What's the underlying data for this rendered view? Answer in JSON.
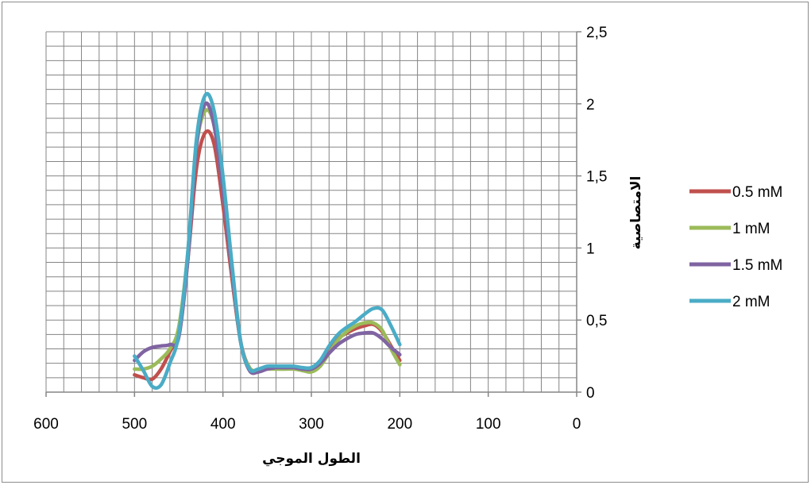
{
  "chart_data": {
    "type": "line",
    "title": "",
    "xlabel": "الطول الموجي",
    "ylabel": "الامتصاصية",
    "xlim": [
      600,
      0
    ],
    "x_reversed": true,
    "ylim": [
      0,
      2.5
    ],
    "x_ticks": [
      "600",
      "500",
      "400",
      "300",
      "200",
      "100",
      "0"
    ],
    "y_ticks": [
      "0",
      "0,5",
      "1",
      "1,5",
      "2",
      "2,5"
    ],
    "y_axis_side": "right",
    "grid": true,
    "legend_position": "right",
    "series": [
      {
        "name": "0.5 mM",
        "color": "#c0504d",
        "points": [
          [
            500,
            0.12
          ],
          [
            490,
            0.1
          ],
          [
            480,
            0.09
          ],
          [
            470,
            0.16
          ],
          [
            460,
            0.28
          ],
          [
            450,
            0.42
          ],
          [
            440,
            0.9
          ],
          [
            430,
            1.55
          ],
          [
            420,
            1.8
          ],
          [
            410,
            1.72
          ],
          [
            400,
            1.3
          ],
          [
            390,
            0.8
          ],
          [
            380,
            0.35
          ],
          [
            370,
            0.17
          ],
          [
            360,
            0.15
          ],
          [
            350,
            0.17
          ],
          [
            340,
            0.17
          ],
          [
            330,
            0.17
          ],
          [
            320,
            0.17
          ],
          [
            310,
            0.15
          ],
          [
            300,
            0.15
          ],
          [
            290,
            0.2
          ],
          [
            280,
            0.3
          ],
          [
            270,
            0.37
          ],
          [
            260,
            0.41
          ],
          [
            250,
            0.44
          ],
          [
            240,
            0.46
          ],
          [
            230,
            0.47
          ],
          [
            220,
            0.42
          ],
          [
            210,
            0.32
          ],
          [
            200,
            0.22
          ]
        ]
      },
      {
        "name": "1 mM",
        "color": "#9bbb59",
        "points": [
          [
            500,
            0.16
          ],
          [
            490,
            0.16
          ],
          [
            480,
            0.18
          ],
          [
            470,
            0.23
          ],
          [
            460,
            0.3
          ],
          [
            450,
            0.45
          ],
          [
            440,
            0.95
          ],
          [
            430,
            1.7
          ],
          [
            420,
            1.95
          ],
          [
            410,
            1.85
          ],
          [
            400,
            1.4
          ],
          [
            390,
            0.85
          ],
          [
            380,
            0.35
          ],
          [
            370,
            0.17
          ],
          [
            360,
            0.15
          ],
          [
            350,
            0.16
          ],
          [
            340,
            0.16
          ],
          [
            330,
            0.16
          ],
          [
            320,
            0.16
          ],
          [
            310,
            0.15
          ],
          [
            300,
            0.14
          ],
          [
            290,
            0.18
          ],
          [
            280,
            0.27
          ],
          [
            270,
            0.36
          ],
          [
            260,
            0.42
          ],
          [
            250,
            0.46
          ],
          [
            240,
            0.48
          ],
          [
            230,
            0.48
          ],
          [
            220,
            0.43
          ],
          [
            210,
            0.3
          ],
          [
            200,
            0.19
          ]
        ]
      },
      {
        "name": "1.5 mM",
        "color": "#8064a2",
        "points": [
          [
            500,
            0.22
          ],
          [
            490,
            0.28
          ],
          [
            480,
            0.31
          ],
          [
            470,
            0.32
          ],
          [
            460,
            0.33
          ],
          [
            450,
            0.38
          ],
          [
            440,
            0.9
          ],
          [
            430,
            1.7
          ],
          [
            420,
            2.0
          ],
          [
            410,
            1.85
          ],
          [
            400,
            1.4
          ],
          [
            390,
            0.85
          ],
          [
            380,
            0.35
          ],
          [
            370,
            0.15
          ],
          [
            360,
            0.14
          ],
          [
            350,
            0.16
          ],
          [
            340,
            0.17
          ],
          [
            330,
            0.17
          ],
          [
            320,
            0.17
          ],
          [
            310,
            0.16
          ],
          [
            300,
            0.16
          ],
          [
            290,
            0.2
          ],
          [
            280,
            0.27
          ],
          [
            270,
            0.33
          ],
          [
            260,
            0.37
          ],
          [
            250,
            0.4
          ],
          [
            240,
            0.41
          ],
          [
            230,
            0.41
          ],
          [
            220,
            0.37
          ],
          [
            210,
            0.31
          ],
          [
            200,
            0.26
          ]
        ]
      },
      {
        "name": "2 mM",
        "color": "#4bacc6",
        "points": [
          [
            500,
            0.25
          ],
          [
            490,
            0.15
          ],
          [
            480,
            0.04
          ],
          [
            470,
            0.05
          ],
          [
            460,
            0.2
          ],
          [
            450,
            0.4
          ],
          [
            440,
            0.95
          ],
          [
            430,
            1.75
          ],
          [
            420,
            2.06
          ],
          [
            410,
            1.95
          ],
          [
            400,
            1.5
          ],
          [
            390,
            0.9
          ],
          [
            380,
            0.35
          ],
          [
            370,
            0.16
          ],
          [
            360,
            0.16
          ],
          [
            350,
            0.18
          ],
          [
            340,
            0.18
          ],
          [
            330,
            0.18
          ],
          [
            320,
            0.18
          ],
          [
            310,
            0.17
          ],
          [
            300,
            0.17
          ],
          [
            290,
            0.22
          ],
          [
            280,
            0.32
          ],
          [
            270,
            0.4
          ],
          [
            260,
            0.45
          ],
          [
            250,
            0.49
          ],
          [
            240,
            0.54
          ],
          [
            230,
            0.58
          ],
          [
            220,
            0.57
          ],
          [
            210,
            0.46
          ],
          [
            200,
            0.33
          ]
        ]
      }
    ]
  }
}
